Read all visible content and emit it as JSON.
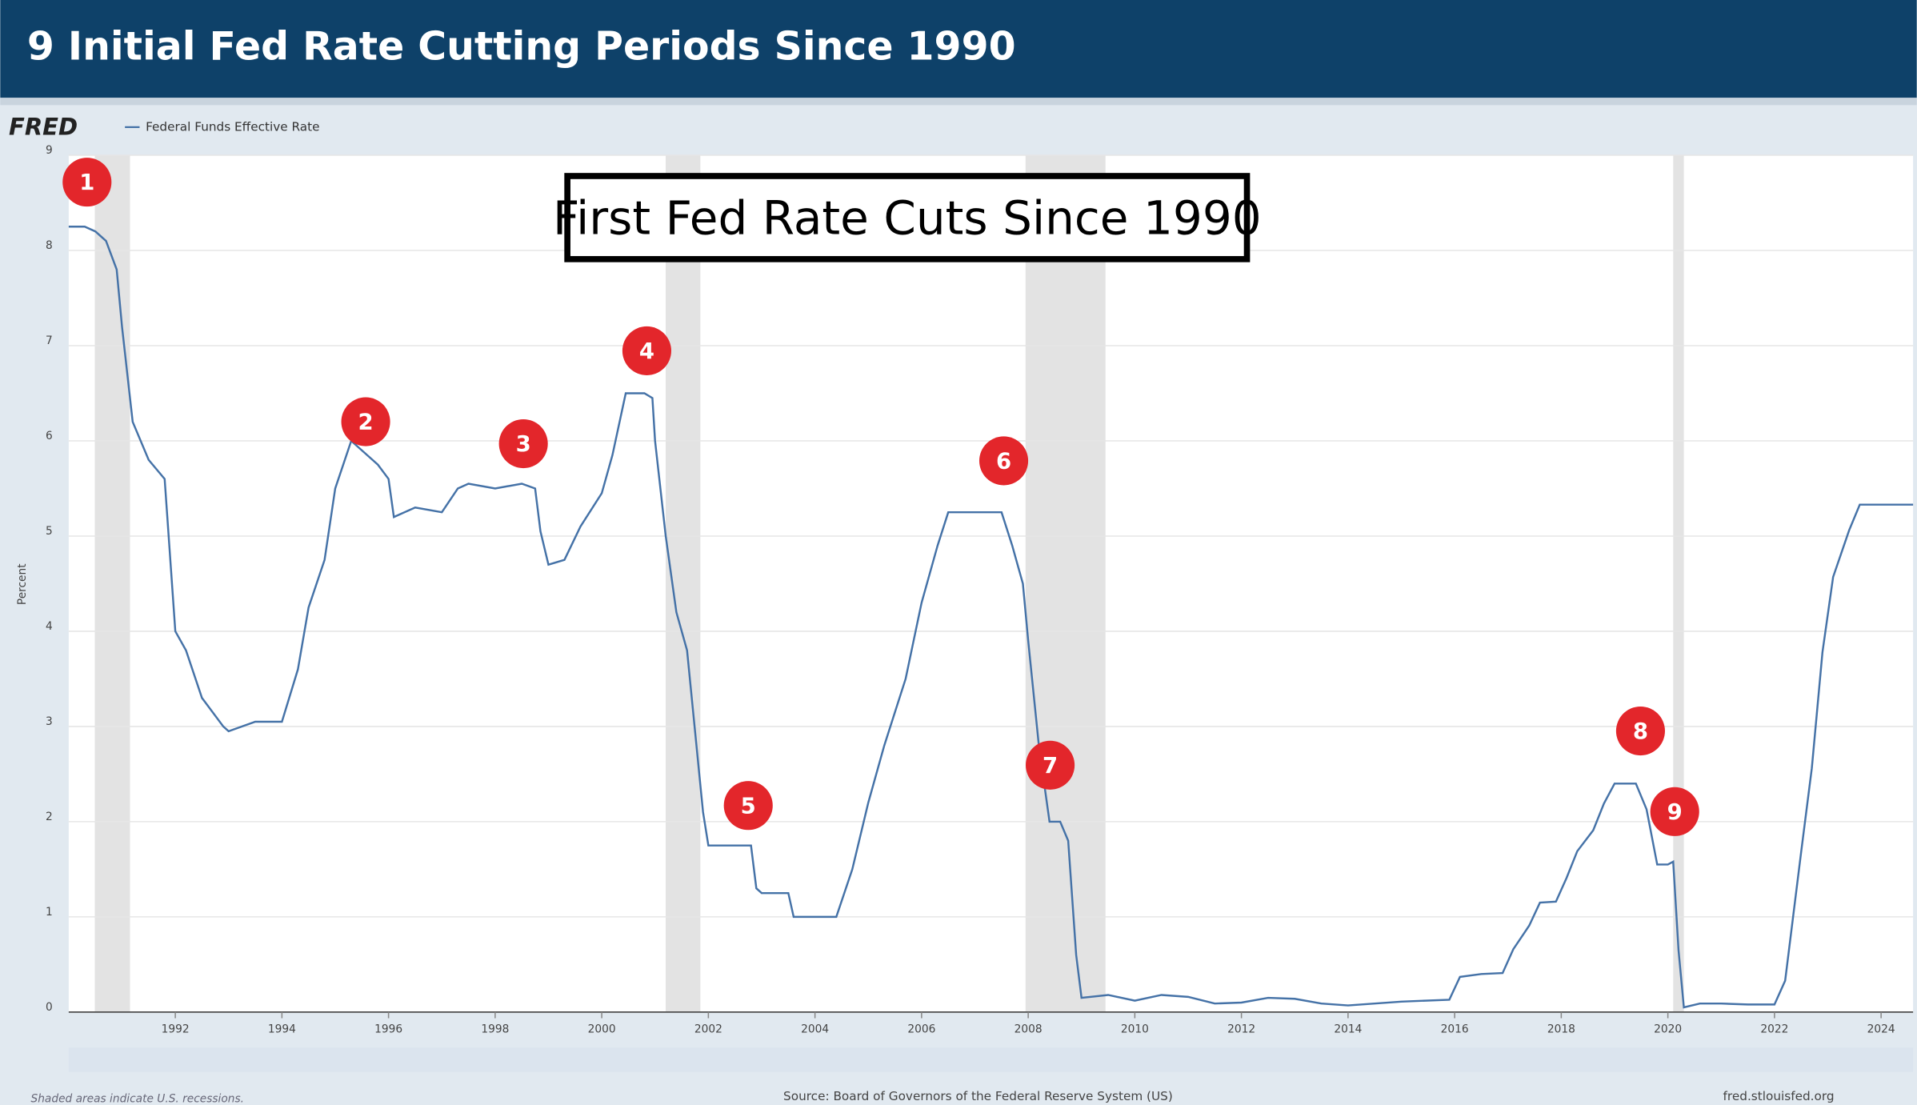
{
  "header": {
    "title": "9 Initial Fed Rate Cutting Periods Since 1990"
  },
  "brand": "FRED",
  "chart_data": {
    "type": "line",
    "title": "First Fed Rate Cuts Since 1990",
    "y_label": "Percent",
    "x": [
      1990.0,
      1990.3,
      1990.5,
      1990.7,
      1990.9,
      1991.0,
      1991.2,
      1991.5,
      1991.8,
      1992.0,
      1992.2,
      1992.5,
      1992.9,
      1993.0,
      1993.5,
      1994.0,
      1994.3,
      1994.5,
      1994.8,
      1995.0,
      1995.3,
      1995.5,
      1995.8,
      1996.0,
      1996.1,
      1996.5,
      1997.0,
      1997.3,
      1997.5,
      1998.0,
      1998.5,
      1998.75,
      1998.85,
      1999.0,
      1999.3,
      1999.6,
      2000.0,
      2000.2,
      2000.45,
      2000.8,
      2000.95,
      2001.0,
      2001.2,
      2001.4,
      2001.6,
      2001.9,
      2002.0,
      2002.5,
      2002.8,
      2002.9,
      2003.0,
      2003.5,
      2003.6,
      2004.0,
      2004.4,
      2004.7,
      2005.0,
      2005.3,
      2005.7,
      2006.0,
      2006.3,
      2006.5,
      2007.0,
      2007.5,
      2007.7,
      2007.9,
      2008.0,
      2008.2,
      2008.4,
      2008.6,
      2008.75,
      2008.9,
      2009.0,
      2009.5,
      2010.0,
      2010.5,
      2011.0,
      2011.5,
      2012.0,
      2012.5,
      2013.0,
      2013.5,
      2014.0,
      2014.5,
      2015.0,
      2015.9,
      2016.1,
      2016.5,
      2016.9,
      2017.1,
      2017.4,
      2017.6,
      2017.9,
      2018.1,
      2018.3,
      2018.6,
      2018.8,
      2019.0,
      2019.4,
      2019.6,
      2019.8,
      2020.0,
      2020.1,
      2020.2,
      2020.3,
      2020.6,
      2021.0,
      2021.5,
      2022.0,
      2022.2,
      2022.5,
      2022.7,
      2022.9,
      2023.1,
      2023.4,
      2023.6,
      2024.0,
      2024.6
    ],
    "series": [
      {
        "name": "Federal Funds Effective Rate",
        "color": "#4572a7",
        "values": [
          8.25,
          8.25,
          8.2,
          8.1,
          7.8,
          7.2,
          6.2,
          5.8,
          5.6,
          4.0,
          3.8,
          3.3,
          3.0,
          2.95,
          3.05,
          3.05,
          3.6,
          4.25,
          4.75,
          5.5,
          6.0,
          5.9,
          5.75,
          5.6,
          5.2,
          5.3,
          5.25,
          5.5,
          5.55,
          5.5,
          5.55,
          5.5,
          5.05,
          4.7,
          4.75,
          5.1,
          5.45,
          5.85,
          6.5,
          6.5,
          6.45,
          6.0,
          5.0,
          4.2,
          3.8,
          2.1,
          1.75,
          1.75,
          1.75,
          1.3,
          1.25,
          1.25,
          1.0,
          1.0,
          1.0,
          1.5,
          2.2,
          2.8,
          3.5,
          4.3,
          4.9,
          5.25,
          5.25,
          5.25,
          4.9,
          4.5,
          3.9,
          2.8,
          2.0,
          2.0,
          1.8,
          0.6,
          0.15,
          0.18,
          0.12,
          0.18,
          0.16,
          0.09,
          0.1,
          0.15,
          0.14,
          0.09,
          0.07,
          0.09,
          0.11,
          0.13,
          0.37,
          0.4,
          0.41,
          0.66,
          0.91,
          1.15,
          1.16,
          1.41,
          1.69,
          1.91,
          2.19,
          2.4,
          2.4,
          2.13,
          1.55,
          1.55,
          1.58,
          0.65,
          0.05,
          0.09,
          0.09,
          0.08,
          0.08,
          0.33,
          1.68,
          2.56,
          3.78,
          4.57,
          5.06,
          5.33,
          5.33,
          5.33
        ]
      }
    ],
    "shaded_periods": [
      [
        1990.49,
        1991.15
      ],
      [
        2001.2,
        2001.85
      ],
      [
        2007.95,
        2009.45
      ],
      [
        2020.1,
        2020.3
      ]
    ],
    "markers": [
      "1",
      "2",
      "3",
      "4",
      "5",
      "6",
      "7",
      "8",
      "9"
    ],
    "xlim": [
      1990.0,
      2024.6
    ],
    "xticks": [
      1992,
      1994,
      1996,
      1998,
      2000,
      2002,
      2004,
      2006,
      2008,
      2010,
      2012,
      2014,
      2016,
      2018,
      2020,
      2022,
      2024
    ],
    "ylim": [
      0,
      9
    ],
    "yticks": [
      0,
      1,
      2,
      3,
      4,
      5,
      6,
      7,
      8,
      9
    ],
    "grid": true
  },
  "footer": {
    "note": "Shaded areas indicate U.S. recessions.",
    "source": "Source: Board of Governors of the Federal Reserve System (US)",
    "site": "fred.stlouisfed.org"
  }
}
